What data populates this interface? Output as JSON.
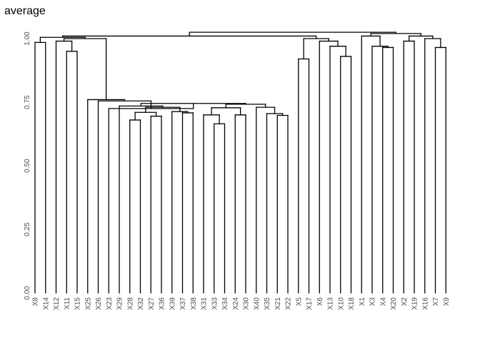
{
  "chart_data": {
    "type": "dendrogram",
    "title": "average",
    "xlabel": "",
    "ylabel": "",
    "ylim": [
      0,
      1.03
    ],
    "yticks": [
      "0.00",
      "0.25",
      "0.50",
      "0.75",
      "1.00"
    ],
    "grid": false,
    "legend": "none",
    "leaves": [
      "X8",
      "X14",
      "X12",
      "X11",
      "X15",
      "X25",
      "X26",
      "X23",
      "X29",
      "X28",
      "X32",
      "X27",
      "X36",
      "X39",
      "X37",
      "X38",
      "X31",
      "X33",
      "X34",
      "X24",
      "X30",
      "X40",
      "X35",
      "X21",
      "X22",
      "X5",
      "X17",
      "X6",
      "X13",
      "X10",
      "X18",
      "X1",
      "X3",
      "X4",
      "X20",
      "X2",
      "X19",
      "X16",
      "X7",
      "X9"
    ],
    "merges": [
      {
        "a": "X8",
        "b": "X14",
        "height": 0.985
      },
      {
        "a": "X11",
        "b": "X15",
        "height": 0.95
      },
      {
        "a": "X12",
        "b": "X11+X15",
        "height": 0.99
      },
      {
        "a": "X28",
        "b": "X32",
        "height": 0.68
      },
      {
        "a": "X27",
        "b": "X36",
        "height": 0.695
      },
      {
        "a": "X28+X32",
        "b": "X27+X36",
        "height": 0.71
      },
      {
        "a": "X37",
        "b": "X38",
        "height": 0.708
      },
      {
        "a": "X39",
        "b": "X37+X38",
        "height": 0.713
      },
      {
        "a": "G_28_36",
        "b": "G_39_38",
        "height": 0.73
      },
      {
        "a": "X29",
        "b": "G_28_38",
        "height": 0.735
      },
      {
        "a": "X33",
        "b": "X34",
        "height": 0.665
      },
      {
        "a": "X31",
        "b": "X33+X34",
        "height": 0.7
      },
      {
        "a": "X24",
        "b": "X30",
        "height": 0.7
      },
      {
        "a": "G_31_34",
        "b": "X24+X30",
        "height": 0.728
      },
      {
        "a": "X21",
        "b": "X22",
        "height": 0.698
      },
      {
        "a": "X35",
        "b": "X21+X22",
        "height": 0.705
      },
      {
        "a": "X40",
        "b": "G_35_22",
        "height": 0.73
      },
      {
        "a": "G_31_30",
        "b": "G_40_22",
        "height": 0.742
      },
      {
        "a": "G_29_38",
        "b": "G_31_22",
        "height": 0.745
      },
      {
        "a": "X23",
        "b": "G_29_22",
        "height": 0.725
      },
      {
        "a": "X26",
        "b": "G_23_22",
        "height": 0.755
      },
      {
        "a": "X25",
        "b": "G_26_22",
        "height": 0.76
      },
      {
        "a": "G_12_15",
        "b": "G_25_22",
        "height": 1.0
      },
      {
        "a": "X8+X14",
        "b": "G_12_22",
        "height": 1.005
      },
      {
        "a": "X10",
        "b": "X18",
        "height": 0.93
      },
      {
        "a": "X13",
        "b": "X10+X18",
        "height": 0.97
      },
      {
        "a": "X6",
        "b": "G_13_18",
        "height": 0.99
      },
      {
        "a": "X5",
        "b": "X17",
        "height": 0.92
      },
      {
        "a": "X5+X17",
        "b": "G_6_18",
        "height": 1.0
      },
      {
        "a": "X4",
        "b": "X20",
        "height": 0.965
      },
      {
        "a": "X3",
        "b": "X4+X20",
        "height": 0.97
      },
      {
        "a": "X1",
        "b": "G_3_20",
        "height": 1.01
      },
      {
        "a": "X2",
        "b": "X19",
        "height": 0.99
      },
      {
        "a": "X7",
        "b": "X9",
        "height": 0.965
      },
      {
        "a": "X16",
        "b": "X7+X9",
        "height": 1.0
      },
      {
        "a": "X2+X19",
        "b": "G_16_9",
        "height": 1.01
      },
      {
        "a": "G_1_20",
        "b": "G_2_9",
        "height": 1.02
      },
      {
        "a": "G_8_22",
        "b": "G_5_18",
        "height": 1.01
      },
      {
        "a": "G_8_18",
        "b": "G_1_9",
        "height": 1.025
      }
    ]
  }
}
